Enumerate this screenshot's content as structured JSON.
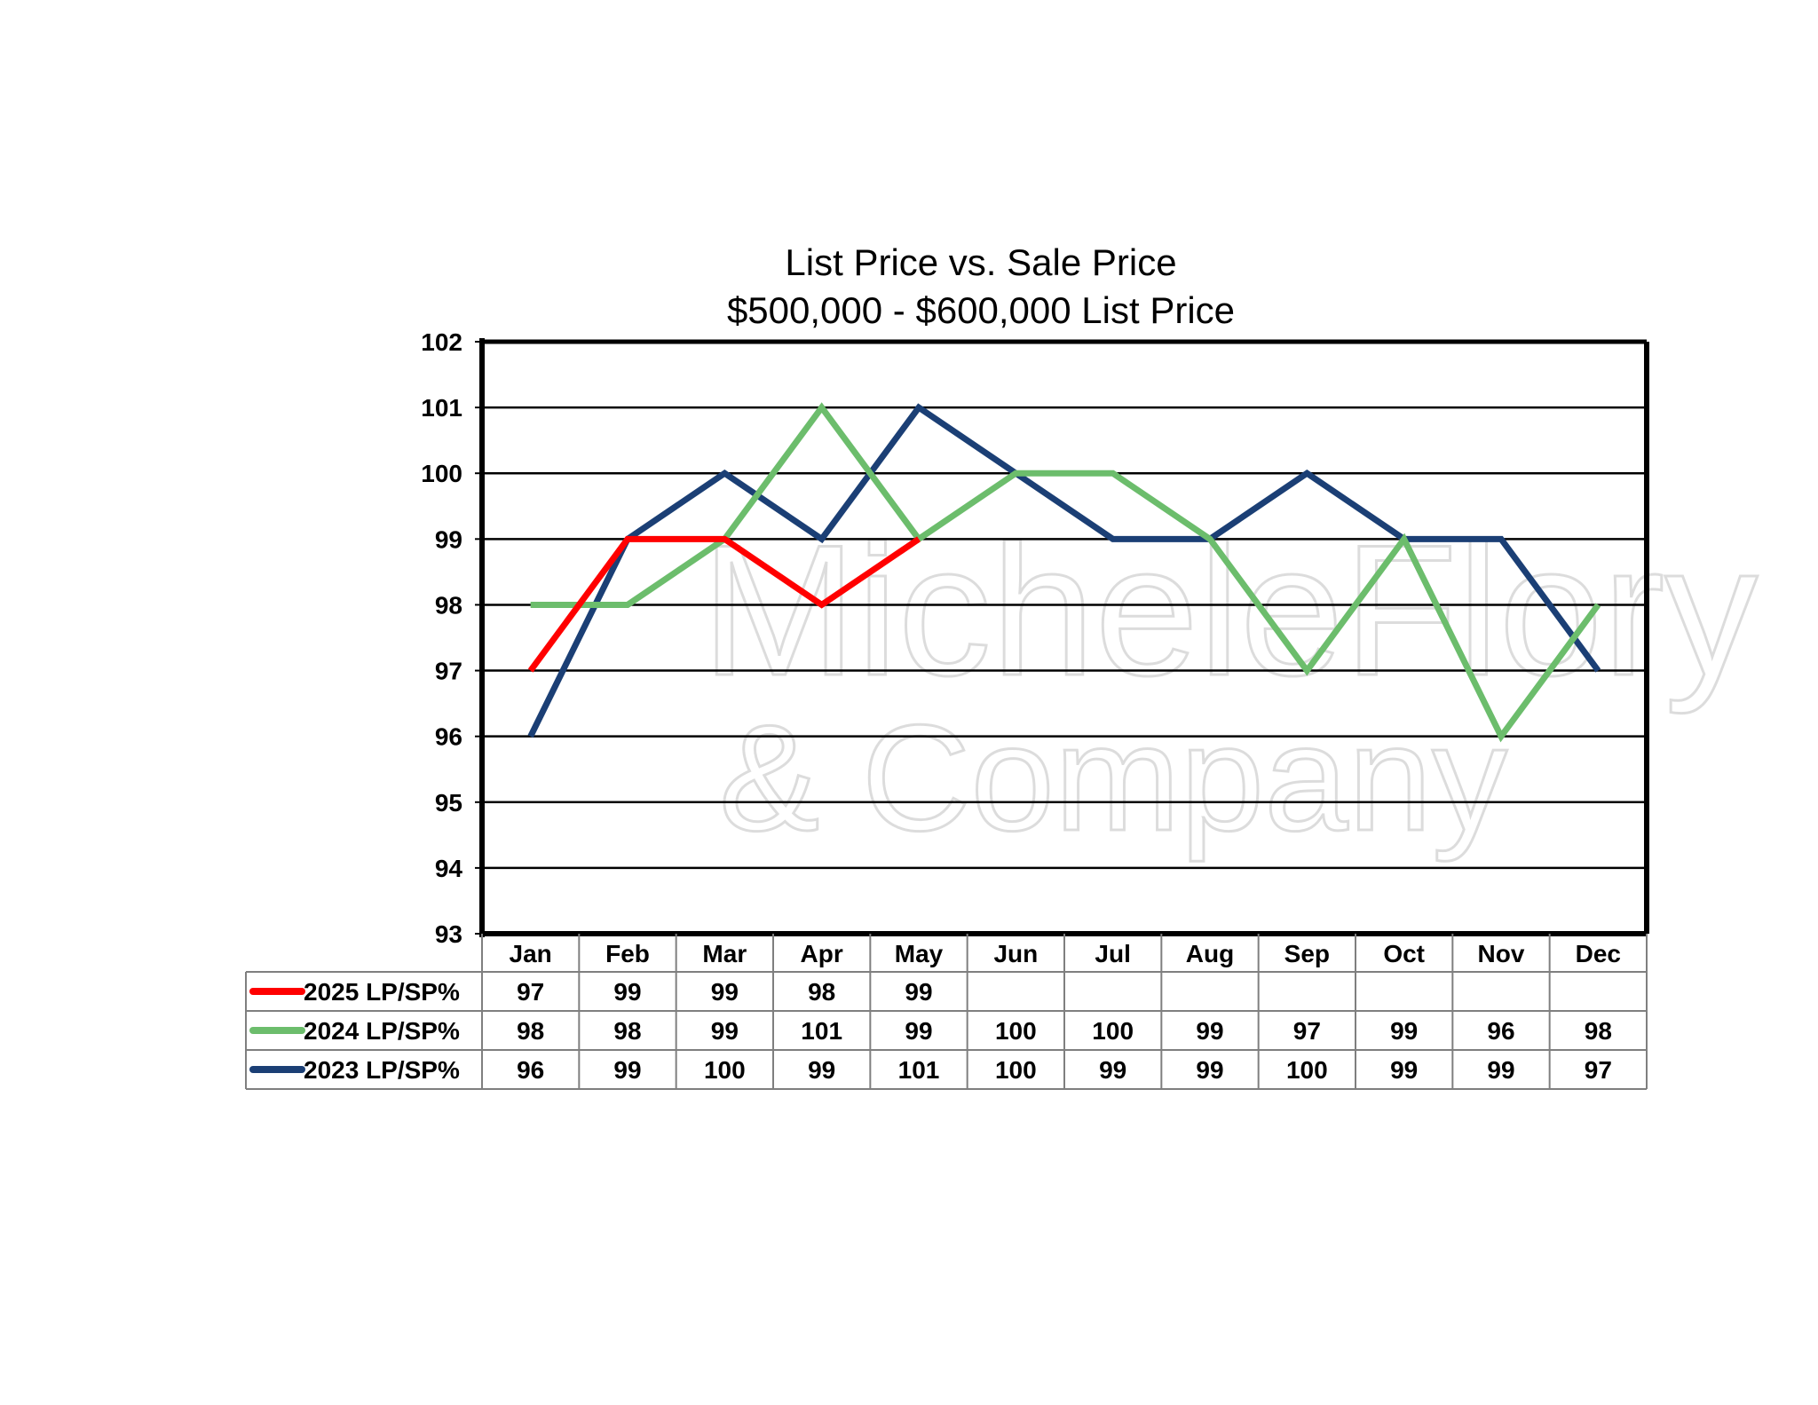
{
  "chart_data": {
    "type": "line",
    "title": "List Price vs. Sale Price",
    "subtitle": "$500,000 - $600,000  List Price",
    "categories": [
      "Jan",
      "Feb",
      "Mar",
      "Apr",
      "May",
      "Jun",
      "Jul",
      "Aug",
      "Sep",
      "Oct",
      "Nov",
      "Dec"
    ],
    "ylim": [
      93,
      102
    ],
    "yticks": [
      93,
      94,
      95,
      96,
      97,
      98,
      99,
      100,
      101,
      102
    ],
    "grid": true,
    "legend": "data-table-left",
    "series": [
      {
        "name": "2025 LP/SP%",
        "color": "#ff0000",
        "values": [
          97,
          99,
          99,
          98,
          99,
          null,
          null,
          null,
          null,
          null,
          null,
          null
        ]
      },
      {
        "name": "2024 LP/SP%",
        "color": "#6cbd6c",
        "values": [
          98,
          98,
          99,
          101,
          99,
          100,
          100,
          99,
          97,
          99,
          96,
          98
        ]
      },
      {
        "name": "2023 LP/SP%",
        "color": "#1b3f75",
        "values": [
          96,
          99,
          100,
          99,
          101,
          100,
          99,
          99,
          100,
          99,
          99,
          97
        ]
      }
    ]
  },
  "watermark": {
    "line1": "MicheleFlory",
    "line2": "& Company"
  }
}
